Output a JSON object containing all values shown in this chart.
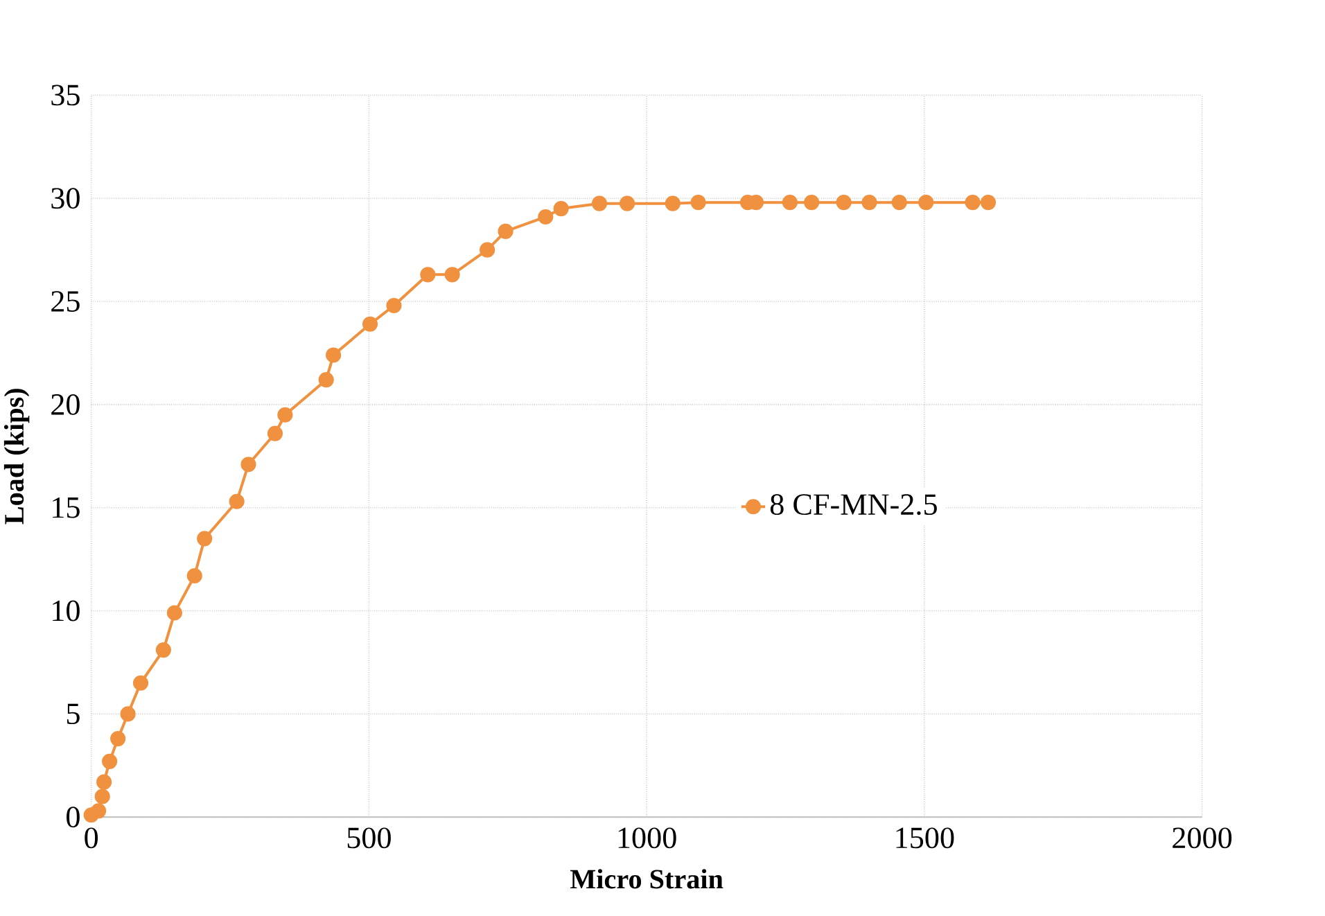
{
  "chart_data": {
    "type": "line",
    "xlabel": "Micro Strain",
    "ylabel": "Load (kips)",
    "xlim": [
      0,
      2000
    ],
    "ylim": [
      0,
      35
    ],
    "xticks": [
      0,
      500,
      1000,
      1500,
      2000
    ],
    "yticks": [
      0,
      5,
      10,
      15,
      20,
      25,
      30,
      35
    ],
    "grid": true,
    "legend": "right",
    "marker": "circle",
    "line_style": "solid",
    "series": [
      {
        "name": "8 CF-MN-2.5",
        "color": "#f0913f",
        "x": [
          0,
          13,
          20,
          23,
          33,
          48,
          66,
          89,
          130,
          150,
          186,
          204,
          262,
          283,
          331,
          349,
          423,
          436,
          502,
          545,
          606,
          650,
          713,
          746,
          818,
          846,
          915,
          965,
          1047,
          1093,
          1182,
          1197,
          1258,
          1297,
          1355,
          1401,
          1455,
          1503,
          1587,
          1615
        ],
        "values": [
          0.1,
          0.3,
          1.0,
          1.7,
          2.7,
          3.8,
          5.0,
          6.5,
          8.1,
          9.9,
          11.7,
          13.5,
          15.3,
          17.1,
          18.6,
          19.5,
          21.2,
          22.4,
          23.9,
          24.8,
          26.3,
          26.3,
          27.5,
          28.4,
          29.1,
          29.5,
          29.75,
          29.75,
          29.75,
          29.8,
          29.8,
          29.8,
          29.8,
          29.8,
          29.8,
          29.8,
          29.8,
          29.8,
          29.8,
          29.8
        ]
      }
    ]
  }
}
